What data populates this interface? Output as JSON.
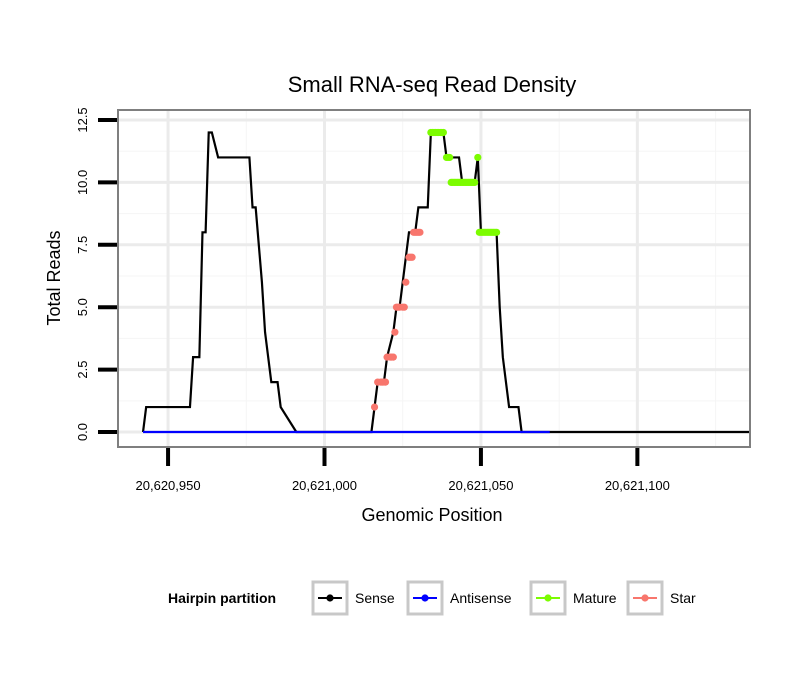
{
  "chart_data": {
    "type": "line",
    "title": "Small RNA-seq Read Density",
    "xlabel": "Genomic Position",
    "ylabel": "Total Reads",
    "xlim": [
      20620934,
      20621136
    ],
    "ylim": [
      -0.6,
      12.9
    ],
    "x_ticks": [
      20620950,
      20621000,
      20621050,
      20621100
    ],
    "x_tick_labels": [
      "20,620,950",
      "20,621,000",
      "20,621,050",
      "20,621,100"
    ],
    "y_ticks": [
      0,
      2.5,
      5,
      7.5,
      10,
      12.5
    ],
    "y_tick_labels": [
      "0.0",
      "2.5",
      "5.0",
      "7.5",
      "10.0",
      "12.5"
    ],
    "grid": true,
    "legend": {
      "title": "Hairpin partition",
      "position": "bottom",
      "entries": [
        {
          "label": "Sense",
          "color": "#000000"
        },
        {
          "label": "Antisense",
          "color": "#0000ff"
        },
        {
          "label": "Mature",
          "color": "#7cfc00"
        },
        {
          "label": "Star",
          "color": "#f8766d"
        }
      ]
    },
    "series": [
      {
        "name": "Sense",
        "color": "#000000",
        "style": "line",
        "x": [
          20620942,
          20620943,
          20620944,
          20620957,
          20620958,
          20620960,
          20620961,
          20620962,
          20620963,
          20620964,
          20620966,
          20620967,
          20620976,
          20620977,
          20620978,
          20620980,
          20620981,
          20620982,
          20620983,
          20620985,
          20620986,
          20620991,
          20621015,
          20621016,
          20621017,
          20621019,
          20621020,
          20621022,
          20621023,
          20621024,
          20621025,
          20621026,
          20621027,
          20621029,
          20621030,
          20621031,
          20621032,
          20621033,
          20621034,
          20621038,
          20621039,
          20621043,
          20621044,
          20621048,
          20621049,
          20621050,
          20621051,
          20621055,
          20621056,
          20621057,
          20621058,
          20621059,
          20621061,
          20621062,
          20621063,
          20621065,
          20621066,
          20621071,
          20621072,
          20621136
        ],
        "y": [
          0,
          1,
          1,
          1,
          3,
          3,
          8,
          8,
          12,
          12,
          11,
          11,
          11,
          9,
          9,
          6,
          4,
          3,
          2,
          2,
          1,
          0,
          0,
          1,
          2,
          2,
          3,
          4,
          5,
          5,
          6,
          7,
          8,
          8,
          9,
          9,
          9,
          9,
          12,
          12,
          11,
          11,
          10,
          10,
          11,
          8,
          8,
          8,
          5,
          3,
          2,
          1,
          1,
          1,
          0,
          0,
          0,
          0,
          0,
          0
        ]
      },
      {
        "name": "Antisense",
        "color": "#0000ff",
        "style": "line",
        "x": [
          20620942,
          20621072
        ],
        "y": [
          0,
          0
        ]
      },
      {
        "name": "Mature",
        "color": "#7cfc00",
        "style": "points",
        "x": [
          20621034,
          20621034.5,
          20621035,
          20621035.5,
          20621036,
          20621036.5,
          20621037,
          20621037.5,
          20621038,
          20621039,
          20621039.5,
          20621040,
          20621040.5,
          20621041,
          20621041.5,
          20621042,
          20621042.5,
          20621043,
          20621043.5,
          20621044,
          20621044.5,
          20621045,
          20621045.5,
          20621046,
          20621046.5,
          20621047,
          20621047.5,
          20621048,
          20621049,
          20621049.5,
          20621050,
          20621050.5,
          20621051,
          20621051.5,
          20621052,
          20621052.5,
          20621053,
          20621053.5,
          20621054,
          20621054.5,
          20621055
        ],
        "y": [
          12,
          12,
          12,
          12,
          12,
          12,
          12,
          12,
          12,
          11,
          11,
          11,
          10,
          10,
          10,
          10,
          10,
          10,
          10,
          10,
          10,
          10,
          10,
          10,
          10,
          10,
          10,
          10,
          11,
          8,
          8,
          8,
          8,
          8,
          8,
          8,
          8,
          8,
          8,
          8,
          8
        ]
      },
      {
        "name": "Star",
        "color": "#f8766d",
        "style": "points",
        "x": [
          20621016,
          20621017,
          20621018,
          20621018.5,
          20621019,
          20621019.5,
          20621020,
          20621021,
          20621021.5,
          20621022,
          20621022.5,
          20621023,
          20621023.5,
          20621024,
          20621025,
          20621025.5,
          20621026,
          20621027,
          20621027.5,
          20621028,
          20621028.5,
          20621029,
          20621029.5,
          20621030,
          20621030.5
        ],
        "y": [
          1,
          2,
          2,
          2,
          2,
          2,
          3,
          3,
          3,
          3,
          4,
          5,
          5,
          5,
          5,
          5,
          6,
          7,
          7,
          7,
          8,
          8,
          8,
          8,
          8
        ]
      }
    ]
  }
}
